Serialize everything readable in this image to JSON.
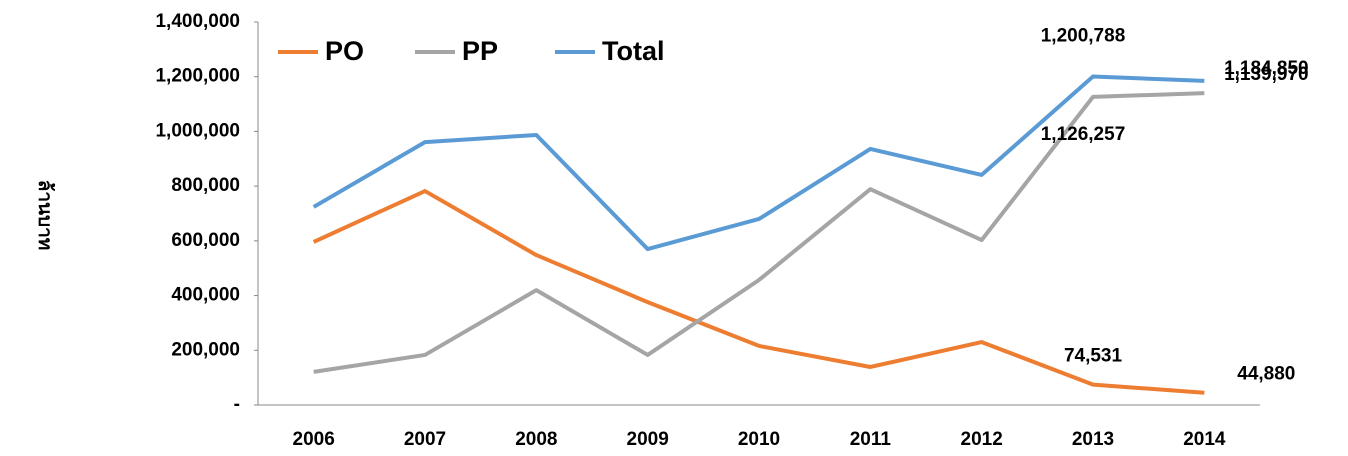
{
  "chart_data": {
    "type": "line",
    "y_label": "ล้านบาท",
    "categories": [
      "2006",
      "2007",
      "2008",
      "2009",
      "2010",
      "2011",
      "2012",
      "2013",
      "2014"
    ],
    "series": [
      {
        "name": "PO",
        "color": "#ED7D31",
        "values": [
          596000,
          782000,
          548000,
          376000,
          216000,
          139000,
          230000,
          74531,
          44880
        ],
        "value_labels": [
          null,
          null,
          null,
          null,
          null,
          null,
          null,
          "74,531",
          "44,880"
        ]
      },
      {
        "name": "PP",
        "color": "#A5A5A5",
        "values": [
          121000,
          183000,
          420000,
          183000,
          457000,
          789000,
          603000,
          1126257,
          1139970
        ],
        "value_labels": [
          null,
          null,
          null,
          null,
          null,
          null,
          null,
          "1,126,257",
          "1,139,970"
        ]
      },
      {
        "name": "Total",
        "color": "#5B9BD5",
        "values": [
          724000,
          961000,
          987000,
          570000,
          680000,
          936000,
          841000,
          1200788,
          1184850
        ],
        "value_labels": [
          null,
          null,
          null,
          null,
          null,
          null,
          null,
          "1,200,788",
          "1,184,850"
        ]
      }
    ],
    "ylim": [
      0,
      1400000
    ],
    "yticks": [
      {
        "value": 0,
        "label": "-"
      },
      {
        "value": 200000,
        "label": "200,000"
      },
      {
        "value": 400000,
        "label": "400,000"
      },
      {
        "value": 600000,
        "label": "600,000"
      },
      {
        "value": 800000,
        "label": "800,000"
      },
      {
        "value": 1000000,
        "label": "1,000,000"
      },
      {
        "value": 1200000,
        "label": "1,200,000"
      },
      {
        "value": 1400000,
        "label": "1,400,000"
      }
    ],
    "legend": "top-left",
    "grid": false
  }
}
